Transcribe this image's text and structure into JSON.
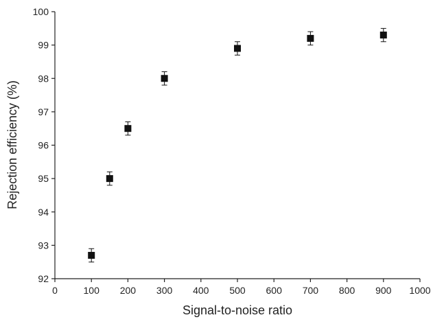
{
  "chart_data": {
    "type": "scatter",
    "xlabel": "Signal-to-noise ratio",
    "ylabel": "Rejection efficiency (%)",
    "x": [
      100,
      150,
      200,
      300,
      500,
      700,
      900
    ],
    "y": [
      92.7,
      95.0,
      96.5,
      98.0,
      98.9,
      99.2,
      99.3
    ],
    "errors": [
      0.2,
      0.2,
      0.2,
      0.2,
      0.2,
      0.2,
      0.2
    ],
    "color": "#111111",
    "xlim": [
      0,
      1000
    ],
    "xticks": [
      0,
      100,
      200,
      300,
      400,
      500,
      600,
      700,
      800,
      900,
      1000
    ],
    "ylim": [
      92,
      100
    ],
    "yticks": [
      92,
      93,
      94,
      95,
      96,
      97,
      98,
      99,
      100
    ]
  }
}
